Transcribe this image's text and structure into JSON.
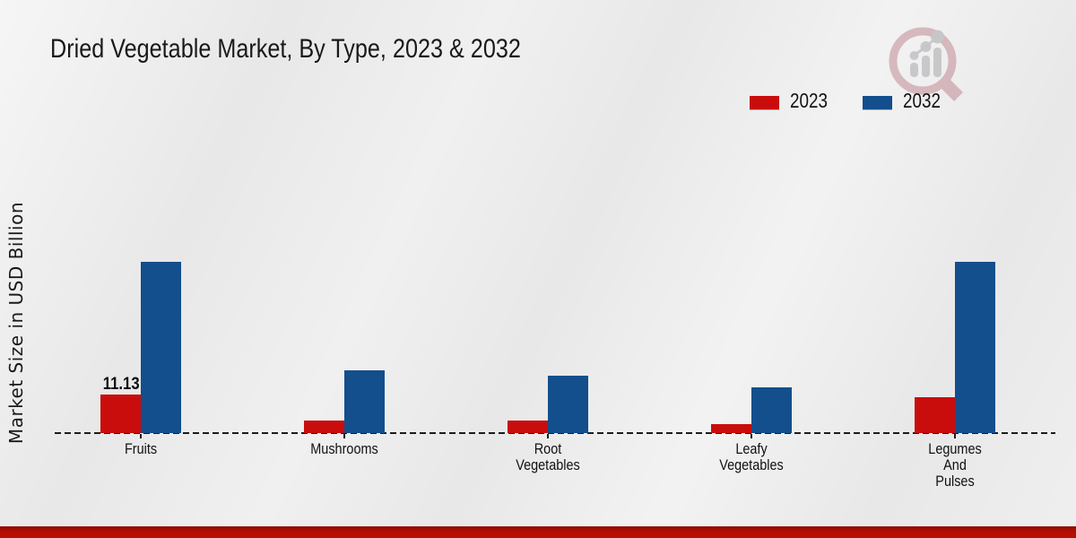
{
  "page": {
    "title": "Dried Vegetable Market, By Type, 2023 & 2032",
    "ylabel": "Market Size in USD Billion"
  },
  "legend": {
    "items": [
      {
        "label": "2023",
        "color": "#c90d0d"
      },
      {
        "label": "2032",
        "color": "#134f8c"
      }
    ]
  },
  "chart_data": {
    "type": "bar",
    "title": "Dried Vegetable Market, By Type, 2023 & 2032",
    "ylabel": "Market Size in USD Billion",
    "categories": [
      "Fruits",
      "Mushrooms",
      "Root\nVegetables",
      "Leafy\nVegetables",
      "Legumes\nAnd\nPulses"
    ],
    "series": [
      {
        "name": "2023",
        "color": "#c90d0d",
        "values": [
          11.13,
          3.6,
          3.5,
          2.7,
          10.4
        ]
      },
      {
        "name": "2032",
        "color": "#134f8c",
        "values": [
          49.4,
          18.1,
          16.5,
          13.2,
          49.4
        ]
      }
    ],
    "data_labels": [
      {
        "series_index": 0,
        "category_index": 0,
        "text": "11.13"
      }
    ],
    "ylim": [
      0,
      55
    ],
    "grid": false,
    "baseline_style": "dashed",
    "legend_position": "top-right"
  },
  "footer": {
    "bar_color": "#b30e03"
  },
  "logo": {
    "icon": "magnifier-bar-chart-watermark"
  }
}
